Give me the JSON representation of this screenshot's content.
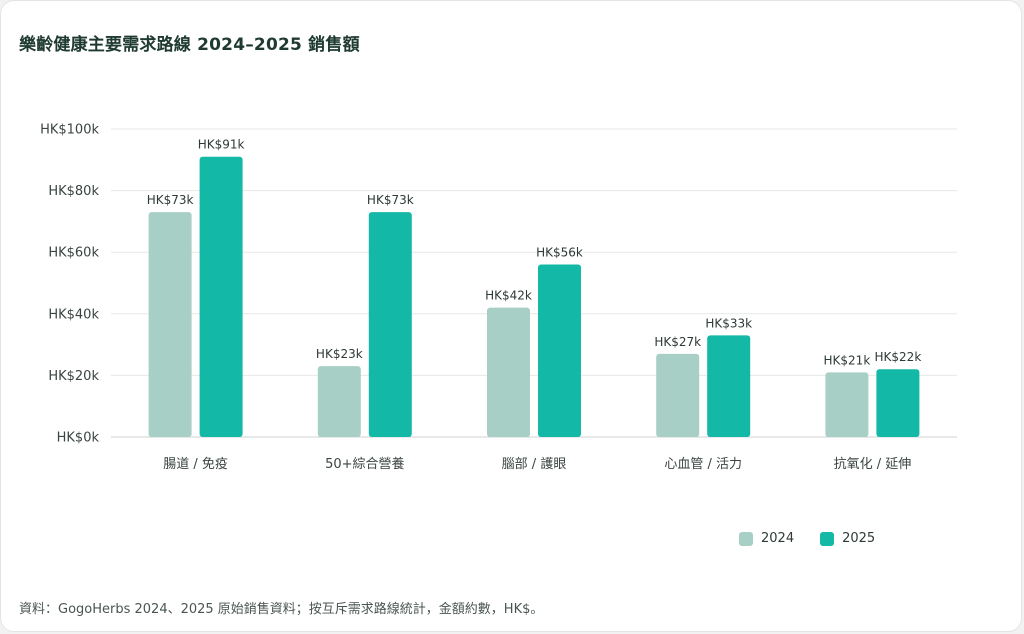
{
  "title": "樂齡健康主要需求路線 2024–2025 銷售額",
  "footnote": "資料：GogoHerbs 2024、2025 原始銷售資料；按互斥需求路線統計，金額約數，HK$。",
  "colors": {
    "series_2024": "#a8cfc5",
    "series_2025": "#14b8a6",
    "grid": "#e6e8e6",
    "axis_text": "#3a4440"
  },
  "chart_data": {
    "type": "bar",
    "title": "樂齡健康主要需求路線 2024–2025 銷售額",
    "categories": [
      "腸道 / 免疫",
      "50+綜合營養",
      "腦部 / 護眼",
      "心血管 / 活力",
      "抗氧化 / 延伸"
    ],
    "series": [
      {
        "name": "2024",
        "values": [
          73,
          23,
          42,
          27,
          21
        ],
        "labels": [
          "HK$73k",
          "HK$23k",
          "HK$42k",
          "HK$27k",
          "HK$21k"
        ]
      },
      {
        "name": "2025",
        "values": [
          91,
          73,
          56,
          33,
          22
        ],
        "labels": [
          "HK$91k",
          "HK$73k",
          "HK$56k",
          "HK$33k",
          "HK$22k"
        ]
      }
    ],
    "unit": "k",
    "ylim": [
      0,
      100
    ],
    "yticks": [
      0,
      20,
      40,
      60,
      80,
      100
    ],
    "ytick_labels": [
      "HK$0k",
      "HK$20k",
      "HK$40k",
      "HK$60k",
      "HK$80k",
      "HK$100k"
    ],
    "grid": true,
    "legend": "bottom-right"
  }
}
